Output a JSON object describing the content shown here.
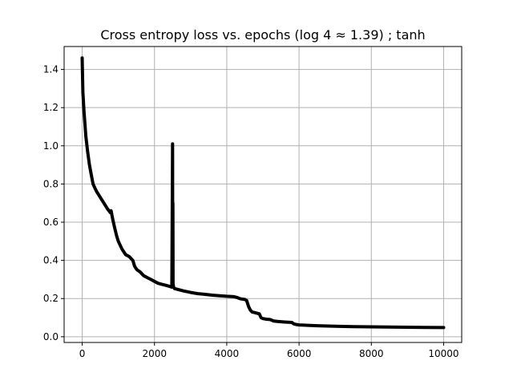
{
  "figure": {
    "title": "Cross entropy loss vs. epochs (log 4 ≈ 1.39) ; tanh"
  },
  "colors": {
    "line": "#000000",
    "grid": "#b0b0b0",
    "axes": "#000000",
    "background": "#ffffff"
  },
  "chart_data": {
    "type": "line",
    "title": "Cross entropy loss vs. epochs (log 4 ≈ 1.39) ; tanh",
    "xlabel": "",
    "ylabel": "",
    "xlim": [
      -500,
      10500
    ],
    "ylim": [
      -0.03,
      1.52
    ],
    "xticks": [
      0,
      2000,
      4000,
      6000,
      8000,
      10000
    ],
    "yticks": [
      0.0,
      0.2,
      0.4,
      0.6,
      0.8,
      1.0,
      1.2,
      1.4
    ],
    "xtick_labels": [
      "0",
      "2000",
      "4000",
      "6000",
      "8000",
      "10000"
    ],
    "ytick_labels": [
      "0.0",
      "0.2",
      "0.4",
      "0.6",
      "0.8",
      "1.0",
      "1.2",
      "1.4"
    ],
    "grid": true,
    "legend": "none",
    "series": [
      {
        "x": [
          0,
          20,
          50,
          100,
          150,
          200,
          250,
          300,
          350,
          400,
          500,
          600,
          700,
          780,
          800,
          820,
          850,
          900,
          950,
          1000,
          1100,
          1200,
          1300,
          1400,
          1450,
          1480,
          1520,
          1600,
          1700,
          1800,
          1900,
          2000,
          2100,
          2200,
          2300,
          2400,
          2480,
          2500,
          2505,
          2510,
          2515,
          2520,
          2530,
          2545,
          2560,
          2600,
          2800,
          3000,
          3200,
          3400,
          3600,
          3800,
          4000,
          4200,
          4300,
          4350,
          4400,
          4500,
          4550,
          4600,
          4650,
          4700,
          4800,
          4900,
          4950,
          5000,
          5100,
          5200,
          5300,
          5400,
          5600,
          5800,
          5850,
          5900,
          6000,
          6500,
          7000,
          7500,
          8000,
          8500,
          9000,
          9500,
          10000
        ],
        "y": [
          1.46,
          1.28,
          1.18,
          1.05,
          0.97,
          0.9,
          0.85,
          0.8,
          0.78,
          0.76,
          0.73,
          0.7,
          0.67,
          0.65,
          0.66,
          0.64,
          0.61,
          0.57,
          0.53,
          0.5,
          0.46,
          0.43,
          0.42,
          0.4,
          0.37,
          0.36,
          0.35,
          0.34,
          0.32,
          0.31,
          0.3,
          0.29,
          0.28,
          0.275,
          0.27,
          0.265,
          0.26,
          1.01,
          0.3,
          0.7,
          0.28,
          0.27,
          0.26,
          0.255,
          0.252,
          0.25,
          0.24,
          0.232,
          0.226,
          0.222,
          0.218,
          0.215,
          0.212,
          0.21,
          0.205,
          0.2,
          0.198,
          0.195,
          0.19,
          0.16,
          0.14,
          0.13,
          0.125,
          0.12,
          0.1,
          0.095,
          0.092,
          0.09,
          0.082,
          0.08,
          0.077,
          0.075,
          0.068,
          0.065,
          0.062,
          0.058,
          0.055,
          0.053,
          0.052,
          0.051,
          0.05,
          0.049,
          0.048
        ]
      }
    ]
  }
}
